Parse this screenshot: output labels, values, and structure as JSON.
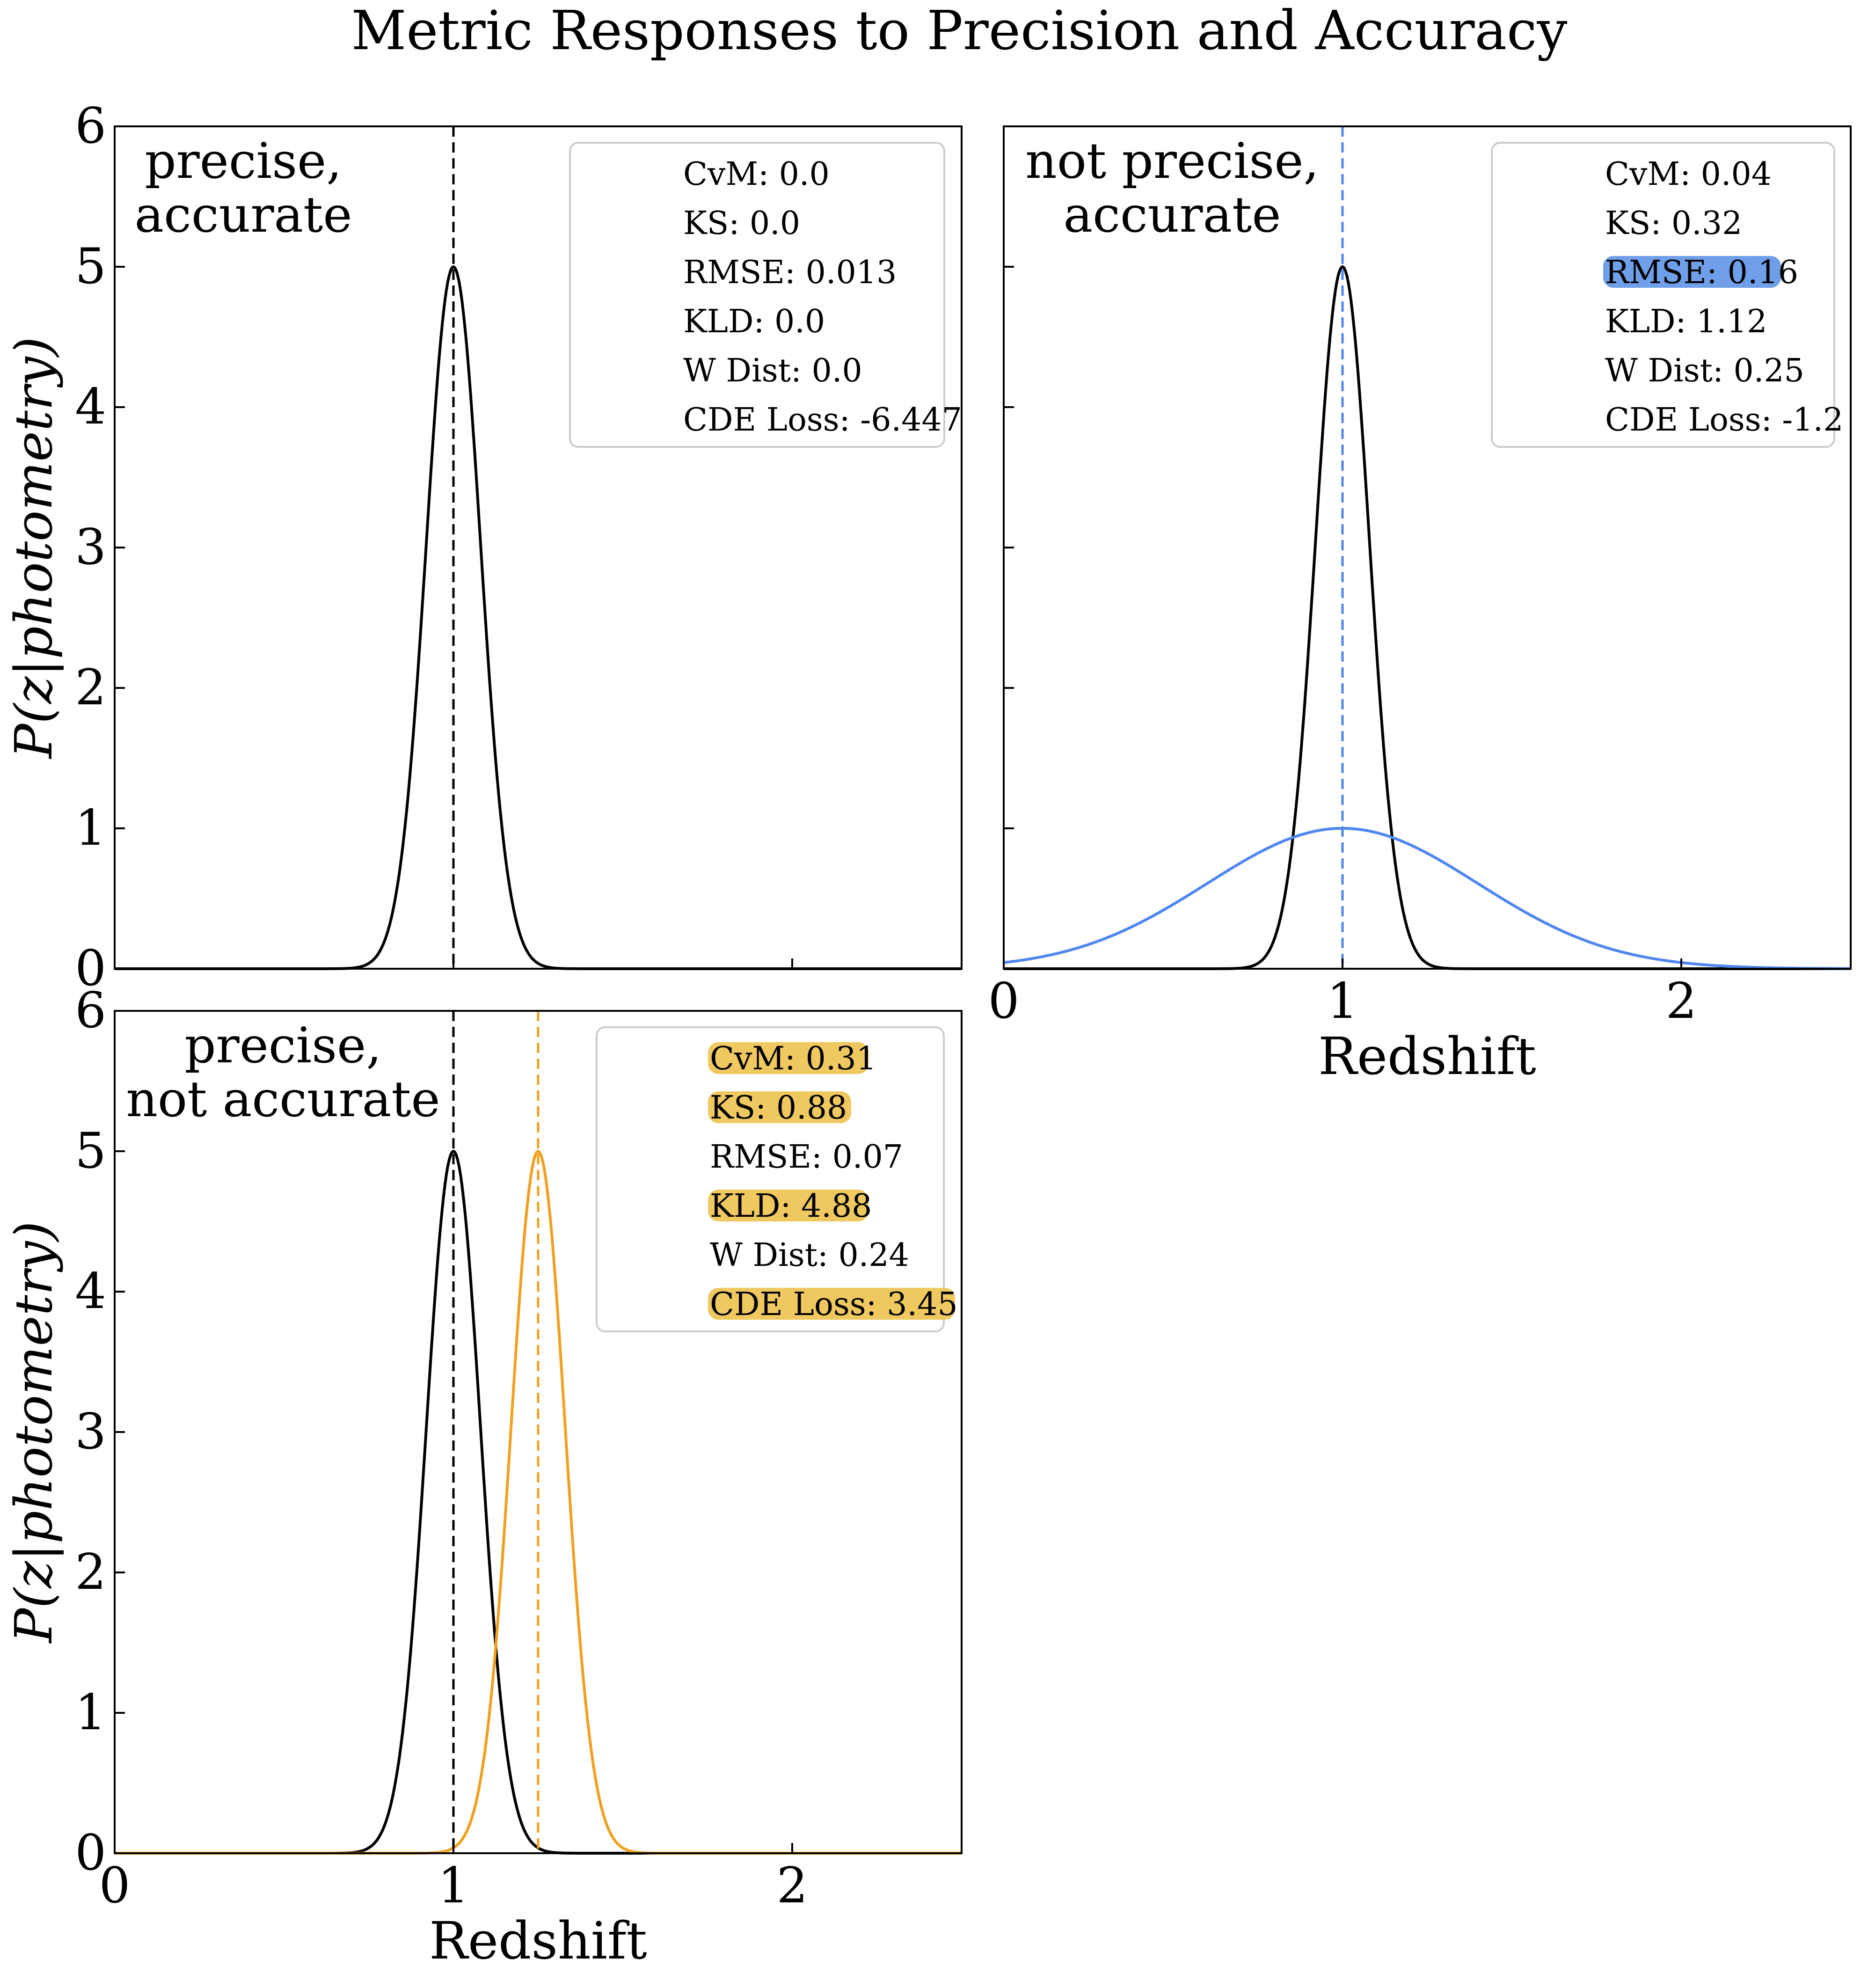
{
  "title": "Metric Responses to Precision and Accuracy",
  "colors": {
    "truth": "#000000",
    "blue": "#4f86f0",
    "orange": "#f0a020",
    "highlight_blue": "#6f9fe8",
    "highlight_orange": "#f0c860"
  },
  "chart_data": [
    {
      "type": "line",
      "panel": "top-left",
      "annotation": [
        "precise,",
        "accurate"
      ],
      "xlabel": "",
      "ylabel": "P(z|photometry)",
      "xlim": [
        0,
        2.5
      ],
      "ylim": [
        0,
        6
      ],
      "xticks": [
        0,
        1,
        2
      ],
      "show_xtick_labels": false,
      "yticks": [
        0,
        1,
        2,
        3,
        4,
        5,
        6
      ],
      "show_ytick_labels": true,
      "series": [
        {
          "role": "truth",
          "mean": 1.0,
          "sigma": 0.08,
          "peak": 5.0,
          "color": "#000000",
          "style": "solid"
        }
      ],
      "vlines": [
        {
          "x": 1.0,
          "color": "#000000",
          "style": "dashed"
        }
      ],
      "metrics": [
        {
          "label": "CvM:",
          "value": "0.0",
          "highlight": null
        },
        {
          "label": "KS:",
          "value": "0.0",
          "highlight": null
        },
        {
          "label": "RMSE:",
          "value": "0.013",
          "highlight": null
        },
        {
          "label": "KLD:",
          "value": "0.0",
          "highlight": null
        },
        {
          "label": "W Dist:",
          "value": "0.0",
          "highlight": null
        },
        {
          "label": "CDE Loss:",
          "value": "-6.447",
          "highlight": null
        }
      ]
    },
    {
      "type": "line",
      "panel": "top-right",
      "annotation": [
        "not precise,",
        "accurate"
      ],
      "xlabel": "Redshift",
      "ylabel": "",
      "xlim": [
        0,
        2.5
      ],
      "ylim": [
        0,
        6
      ],
      "xticks": [
        0,
        1,
        2
      ],
      "show_xtick_labels": true,
      "yticks": [
        0,
        1,
        2,
        3,
        4,
        5,
        6
      ],
      "show_ytick_labels": false,
      "series": [
        {
          "role": "truth",
          "mean": 1.0,
          "sigma": 0.08,
          "peak": 5.0,
          "color": "#000000",
          "style": "solid"
        },
        {
          "role": "estimate",
          "mean": 1.0,
          "sigma": 0.4,
          "peak": 1.0,
          "color": "#4f86f0",
          "style": "solid"
        }
      ],
      "vlines": [
        {
          "x": 1.0,
          "color": "#000000",
          "style": "dashed"
        },
        {
          "x": 1.0,
          "color": "#4f86f0",
          "style": "dashed"
        }
      ],
      "metrics": [
        {
          "label": "CvM:",
          "value": "0.04",
          "highlight": null
        },
        {
          "label": "KS:",
          "value": "0.32",
          "highlight": null
        },
        {
          "label": "RMSE:",
          "value": "0.16",
          "highlight": "#6f9fe8"
        },
        {
          "label": "KLD:",
          "value": "1.12",
          "highlight": null
        },
        {
          "label": "W Dist:",
          "value": "0.25",
          "highlight": null
        },
        {
          "label": "CDE Loss:",
          "value": "-1.2",
          "highlight": null
        }
      ]
    },
    {
      "type": "line",
      "panel": "bottom-left",
      "annotation": [
        "precise,",
        "not accurate"
      ],
      "xlabel": "Redshift",
      "ylabel": "P(z|photometry)",
      "xlim": [
        0,
        2.5
      ],
      "ylim": [
        0,
        6
      ],
      "xticks": [
        0,
        1,
        2
      ],
      "show_xtick_labels": true,
      "yticks": [
        0,
        1,
        2,
        3,
        4,
        5,
        6
      ],
      "show_ytick_labels": true,
      "series": [
        {
          "role": "truth",
          "mean": 1.0,
          "sigma": 0.08,
          "peak": 5.0,
          "color": "#000000",
          "style": "solid"
        },
        {
          "role": "estimate",
          "mean": 1.25,
          "sigma": 0.08,
          "peak": 5.0,
          "color": "#f0a020",
          "style": "solid"
        }
      ],
      "vlines": [
        {
          "x": 1.0,
          "color": "#000000",
          "style": "dashed"
        },
        {
          "x": 1.25,
          "color": "#f0a020",
          "style": "dashed"
        }
      ],
      "metrics": [
        {
          "label": "CvM:",
          "value": "0.31",
          "highlight": "#f0c860"
        },
        {
          "label": "KS:",
          "value": "0.88",
          "highlight": "#f0c860"
        },
        {
          "label": "RMSE:",
          "value": "0.07",
          "highlight": null
        },
        {
          "label": "KLD:",
          "value": "4.88",
          "highlight": "#f0c860"
        },
        {
          "label": "W Dist:",
          "value": "0.24",
          "highlight": null
        },
        {
          "label": "CDE Loss:",
          "value": "3.45",
          "highlight": "#f0c860"
        }
      ]
    }
  ]
}
